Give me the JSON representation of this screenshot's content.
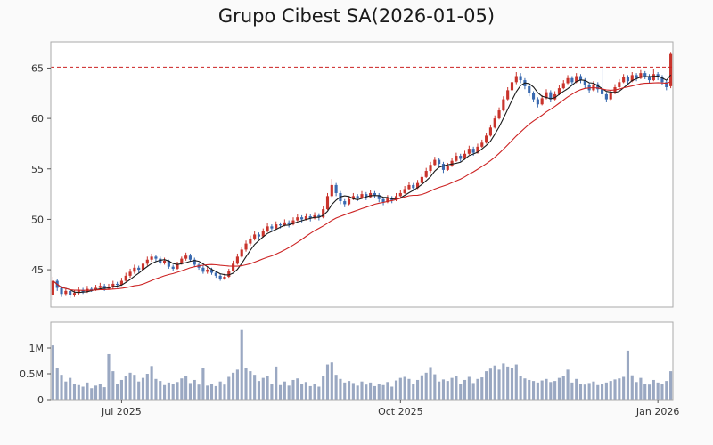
{
  "title": "Grupo Cibest SA(2026-01-05)",
  "colors": {
    "up": "#c9342c",
    "down": "#3a6ab0",
    "ma_short": "#1a1a1a",
    "ma_long": "#cc2222",
    "reference": "#cc2222",
    "volume_bar": "#9aa8c2",
    "panel_border": "#aaaaaa",
    "panel_bg": "#ffffff",
    "axis_text": "#333333",
    "tick_mark": "#555555",
    "background": "#fafafa"
  },
  "chart_data": {
    "type": "candlestick",
    "title": "Grupo Cibest SA(2026-01-05)",
    "panels": [
      "price",
      "volume"
    ],
    "legend": "none",
    "grid": "off",
    "reference_line": 65.1,
    "ma_short_window": 5,
    "ma_long_window": 20,
    "price_ticks": [
      45,
      50,
      55,
      60,
      65
    ],
    "price_range": [
      41.3,
      67.6
    ],
    "volume_ticks": [
      {
        "v": 0.0,
        "label": "0"
      },
      {
        "v": 0.5,
        "label": "0.5M"
      },
      {
        "v": 1.0,
        "label": "1M"
      }
    ],
    "volume_range": [
      0,
      1.5
    ],
    "x_ticks": [
      {
        "i": 16,
        "label": "Jul 2025"
      },
      {
        "i": 81,
        "label": "Oct 2025"
      },
      {
        "i": 141,
        "label": "Jan 2026"
      }
    ],
    "candles_format": [
      "open",
      "high",
      "low",
      "close",
      "volume_millions"
    ],
    "candles": [
      [
        42.5,
        44.3,
        42.0,
        43.9,
        1.05
      ],
      [
        43.9,
        44.1,
        42.9,
        43.2,
        0.62
      ],
      [
        43.2,
        43.4,
        42.3,
        42.6,
        0.48
      ],
      [
        42.6,
        43.2,
        42.4,
        42.9,
        0.35
      ],
      [
        42.9,
        43.0,
        42.2,
        42.5,
        0.42
      ],
      [
        42.5,
        43.0,
        42.3,
        42.7,
        0.3
      ],
      [
        42.7,
        43.3,
        42.5,
        43.0,
        0.28
      ],
      [
        43.0,
        43.2,
        42.6,
        42.8,
        0.25
      ],
      [
        42.8,
        43.4,
        42.7,
        43.1,
        0.33
      ],
      [
        43.1,
        43.3,
        42.8,
        43.0,
        0.22
      ],
      [
        43.0,
        43.5,
        42.9,
        43.2,
        0.27
      ],
      [
        43.2,
        43.7,
        43.0,
        43.4,
        0.31
      ],
      [
        43.4,
        43.6,
        42.9,
        43.1,
        0.24
      ],
      [
        43.1,
        43.6,
        43.0,
        43.3,
        0.88
      ],
      [
        43.3,
        43.9,
        43.1,
        43.6,
        0.55
      ],
      [
        43.6,
        43.8,
        43.2,
        43.5,
        0.3
      ],
      [
        43.5,
        44.2,
        43.4,
        43.9,
        0.38
      ],
      [
        43.9,
        44.7,
        43.8,
        44.4,
        0.45
      ],
      [
        44.4,
        45.1,
        44.2,
        44.8,
        0.52
      ],
      [
        44.8,
        45.5,
        44.6,
        45.2,
        0.48
      ],
      [
        45.2,
        45.4,
        44.7,
        45.0,
        0.35
      ],
      [
        45.0,
        45.9,
        44.9,
        45.6,
        0.42
      ],
      [
        45.6,
        46.3,
        45.4,
        46.0,
        0.5
      ],
      [
        46.0,
        46.6,
        45.8,
        46.3,
        0.65
      ],
      [
        46.3,
        46.5,
        45.8,
        46.1,
        0.4
      ],
      [
        46.1,
        46.3,
        45.5,
        45.7,
        0.36
      ],
      [
        45.7,
        46.2,
        45.5,
        45.9,
        0.28
      ],
      [
        45.9,
        46.0,
        45.1,
        45.3,
        0.33
      ],
      [
        45.3,
        45.5,
        44.9,
        45.1,
        0.3
      ],
      [
        45.1,
        45.8,
        45.0,
        45.6,
        0.34
      ],
      [
        45.6,
        46.3,
        45.5,
        46.1,
        0.41
      ],
      [
        46.1,
        46.7,
        45.9,
        46.4,
        0.46
      ],
      [
        46.4,
        46.6,
        45.8,
        46.0,
        0.32
      ],
      [
        46.0,
        46.2,
        45.3,
        45.5,
        0.38
      ],
      [
        45.5,
        45.7,
        45.0,
        45.2,
        0.29
      ],
      [
        45.2,
        45.4,
        44.6,
        44.8,
        0.61
      ],
      [
        44.8,
        45.3,
        44.6,
        45.0,
        0.27
      ],
      [
        45.0,
        45.2,
        44.5,
        44.7,
        0.31
      ],
      [
        44.7,
        44.9,
        44.2,
        44.4,
        0.26
      ],
      [
        44.4,
        44.6,
        43.9,
        44.1,
        0.35
      ],
      [
        44.1,
        44.6,
        44.0,
        44.3,
        0.29
      ],
      [
        44.3,
        45.1,
        44.2,
        44.9,
        0.44
      ],
      [
        44.9,
        45.9,
        44.8,
        45.6,
        0.52
      ],
      [
        45.6,
        46.6,
        45.5,
        46.3,
        0.58
      ],
      [
        46.3,
        47.3,
        46.2,
        47.0,
        1.35
      ],
      [
        47.0,
        47.9,
        46.8,
        47.6,
        0.62
      ],
      [
        47.6,
        48.4,
        47.4,
        48.1,
        0.55
      ],
      [
        48.1,
        48.8,
        47.9,
        48.5,
        0.48
      ],
      [
        48.5,
        48.7,
        48.0,
        48.3,
        0.36
      ],
      [
        48.3,
        49.1,
        48.2,
        48.8,
        0.42
      ],
      [
        48.8,
        49.6,
        48.7,
        49.3,
        0.46
      ],
      [
        49.3,
        49.5,
        48.8,
        49.1,
        0.3
      ],
      [
        49.1,
        49.8,
        49.0,
        49.5,
        0.64
      ],
      [
        49.5,
        49.7,
        49.1,
        49.4,
        0.28
      ],
      [
        49.4,
        50.0,
        49.3,
        49.7,
        0.35
      ],
      [
        49.7,
        49.9,
        49.2,
        49.5,
        0.27
      ],
      [
        49.5,
        50.2,
        49.4,
        49.9,
        0.38
      ],
      [
        49.9,
        50.5,
        49.8,
        50.2,
        0.41
      ],
      [
        50.2,
        50.4,
        49.7,
        50.0,
        0.3
      ],
      [
        50.0,
        50.6,
        49.9,
        50.3,
        0.34
      ],
      [
        50.3,
        50.5,
        49.8,
        50.1,
        0.26
      ],
      [
        50.1,
        50.7,
        50.0,
        50.4,
        0.31
      ],
      [
        50.4,
        50.6,
        49.9,
        50.2,
        0.25
      ],
      [
        50.2,
        51.3,
        50.1,
        51.0,
        0.45
      ],
      [
        51.0,
        52.6,
        50.9,
        52.3,
        0.68
      ],
      [
        52.3,
        54.0,
        52.2,
        53.4,
        0.72
      ],
      [
        53.4,
        53.6,
        52.3,
        52.6,
        0.48
      ],
      [
        52.6,
        52.8,
        51.5,
        51.8,
        0.4
      ],
      [
        51.8,
        52.0,
        51.2,
        51.5,
        0.33
      ],
      [
        51.5,
        52.3,
        51.4,
        52.0,
        0.36
      ],
      [
        52.0,
        52.6,
        51.9,
        52.3,
        0.32
      ],
      [
        52.3,
        52.5,
        51.8,
        52.1,
        0.27
      ],
      [
        52.1,
        52.8,
        52.0,
        52.5,
        0.35
      ],
      [
        52.5,
        52.7,
        51.9,
        52.2,
        0.29
      ],
      [
        52.2,
        52.9,
        52.1,
        52.6,
        0.33
      ],
      [
        52.6,
        52.8,
        52.1,
        52.4,
        0.26
      ],
      [
        52.4,
        52.6,
        51.7,
        52.0,
        0.3
      ],
      [
        52.0,
        52.2,
        51.4,
        51.7,
        0.28
      ],
      [
        51.7,
        52.4,
        51.6,
        52.1,
        0.34
      ],
      [
        52.1,
        52.3,
        51.6,
        51.9,
        0.25
      ],
      [
        51.9,
        52.6,
        51.8,
        52.3,
        0.37
      ],
      [
        52.3,
        52.9,
        52.2,
        52.6,
        0.42
      ],
      [
        52.6,
        53.3,
        52.5,
        53.0,
        0.44
      ],
      [
        53.0,
        53.7,
        52.9,
        53.4,
        0.4
      ],
      [
        53.4,
        53.6,
        52.8,
        53.1,
        0.31
      ],
      [
        53.1,
        53.9,
        53.0,
        53.6,
        0.38
      ],
      [
        53.6,
        54.5,
        53.5,
        54.2,
        0.47
      ],
      [
        54.2,
        55.1,
        54.1,
        54.8,
        0.52
      ],
      [
        54.8,
        55.7,
        54.6,
        55.4,
        0.63
      ],
      [
        55.4,
        56.2,
        55.3,
        55.9,
        0.49
      ],
      [
        55.9,
        56.1,
        55.2,
        55.5,
        0.35
      ],
      [
        55.5,
        55.7,
        54.6,
        54.9,
        0.39
      ],
      [
        54.9,
        55.6,
        54.8,
        55.3,
        0.36
      ],
      [
        55.3,
        56.1,
        55.2,
        55.8,
        0.42
      ],
      [
        55.8,
        56.6,
        55.7,
        56.3,
        0.45
      ],
      [
        56.3,
        56.5,
        55.7,
        56.0,
        0.3
      ],
      [
        56.0,
        56.8,
        55.9,
        56.5,
        0.38
      ],
      [
        56.5,
        57.3,
        56.4,
        57.0,
        0.44
      ],
      [
        57.0,
        57.2,
        56.3,
        56.6,
        0.32
      ],
      [
        56.6,
        57.5,
        56.5,
        57.2,
        0.4
      ],
      [
        57.2,
        57.9,
        57.1,
        57.6,
        0.43
      ],
      [
        57.6,
        58.6,
        57.5,
        58.3,
        0.55
      ],
      [
        58.3,
        59.4,
        58.2,
        59.1,
        0.6
      ],
      [
        59.1,
        60.3,
        59.0,
        60.0,
        0.66
      ],
      [
        60.0,
        61.1,
        59.9,
        60.8,
        0.58
      ],
      [
        60.8,
        62.2,
        60.7,
        61.9,
        0.7
      ],
      [
        61.9,
        63.1,
        61.8,
        62.8,
        0.64
      ],
      [
        62.8,
        63.9,
        62.7,
        63.6,
        0.61
      ],
      [
        63.6,
        64.6,
        63.4,
        64.2,
        0.68
      ],
      [
        64.2,
        64.5,
        63.5,
        63.8,
        0.45
      ],
      [
        63.8,
        64.0,
        62.9,
        63.2,
        0.41
      ],
      [
        63.2,
        63.4,
        62.2,
        62.5,
        0.38
      ],
      [
        62.5,
        62.7,
        61.6,
        61.9,
        0.36
      ],
      [
        61.9,
        62.1,
        61.1,
        61.4,
        0.33
      ],
      [
        61.4,
        62.3,
        61.3,
        62.0,
        0.37
      ],
      [
        62.0,
        62.9,
        61.9,
        62.6,
        0.4
      ],
      [
        62.6,
        62.8,
        61.6,
        61.9,
        0.34
      ],
      [
        61.9,
        62.7,
        61.8,
        62.4,
        0.36
      ],
      [
        62.4,
        63.3,
        62.3,
        63.0,
        0.42
      ],
      [
        63.0,
        63.8,
        62.9,
        63.5,
        0.45
      ],
      [
        63.5,
        64.3,
        63.4,
        64.0,
        0.58
      ],
      [
        64.0,
        64.2,
        63.3,
        63.6,
        0.33
      ],
      [
        63.6,
        64.5,
        63.5,
        64.2,
        0.4
      ],
      [
        64.2,
        64.4,
        63.5,
        63.8,
        0.31
      ],
      [
        63.8,
        64.0,
        63.0,
        63.3,
        0.29
      ],
      [
        63.3,
        63.5,
        62.5,
        62.8,
        0.32
      ],
      [
        62.8,
        63.7,
        62.7,
        63.4,
        0.35
      ],
      [
        63.4,
        63.6,
        62.6,
        62.9,
        0.28
      ],
      [
        62.9,
        65.0,
        62.1,
        62.4,
        0.3
      ],
      [
        62.4,
        62.6,
        61.6,
        61.9,
        0.33
      ],
      [
        61.9,
        62.8,
        61.8,
        62.5,
        0.36
      ],
      [
        62.5,
        63.4,
        62.4,
        63.1,
        0.39
      ],
      [
        63.1,
        63.9,
        63.0,
        63.6,
        0.41
      ],
      [
        63.6,
        64.4,
        63.5,
        64.1,
        0.44
      ],
      [
        64.1,
        64.3,
        63.4,
        63.7,
        0.95
      ],
      [
        63.7,
        64.6,
        63.6,
        64.3,
        0.47
      ],
      [
        64.3,
        64.5,
        63.7,
        64.0,
        0.34
      ],
      [
        64.0,
        64.8,
        63.9,
        64.5,
        0.42
      ],
      [
        64.5,
        64.7,
        63.9,
        64.2,
        0.31
      ],
      [
        64.2,
        64.4,
        63.5,
        63.8,
        0.29
      ],
      [
        63.8,
        64.9,
        63.7,
        64.4,
        0.38
      ],
      [
        64.4,
        64.6,
        63.8,
        64.1,
        0.33
      ],
      [
        64.1,
        64.3,
        63.3,
        63.6,
        0.3
      ],
      [
        63.6,
        63.8,
        62.8,
        63.1,
        0.36
      ],
      [
        63.2,
        66.6,
        63.0,
        66.4,
        0.55
      ]
    ]
  }
}
